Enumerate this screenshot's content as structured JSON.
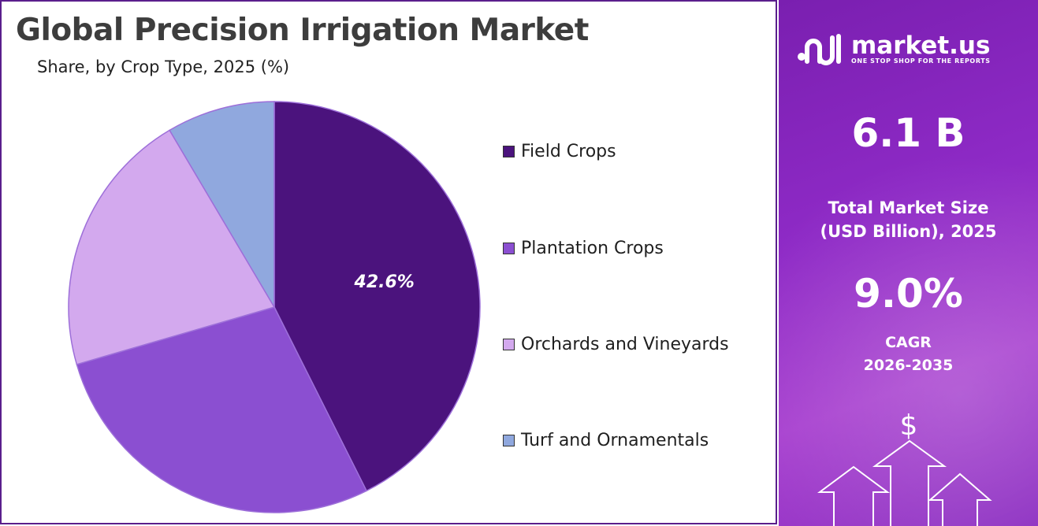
{
  "chart_data": {
    "type": "pie",
    "title": "Global Precision Irrigation Market",
    "subtitle": "Share, by Crop Type, 2025 (%)",
    "categories": [
      "Field Crops",
      "Plantation Crops",
      "Orchards and Vineyards",
      "Turf and Ornamentals"
    ],
    "values": [
      42.6,
      27.9,
      21.0,
      8.5
    ],
    "colors": [
      "#4b137d",
      "#8b4fd1",
      "#d3a9ee",
      "#90a8de"
    ],
    "data_labels": [
      "42.6%",
      "",
      "",
      ""
    ],
    "legend_position": "right"
  },
  "side_panel": {
    "brand": "market.us",
    "tagline": "ONE STOP SHOP FOR THE REPORTS",
    "market_size_value": "6.1 B",
    "market_size_label_line1": "Total Market Size",
    "market_size_label_line2": "(USD Billion), 2025",
    "cagr_value": "9.0%",
    "cagr_label_line1": "CAGR",
    "cagr_label_line2": "2026-2035",
    "currency_symbol": "$",
    "icons": [
      "market-us-logo-icon",
      "arrow-up-icon",
      "dollar-icon"
    ]
  }
}
